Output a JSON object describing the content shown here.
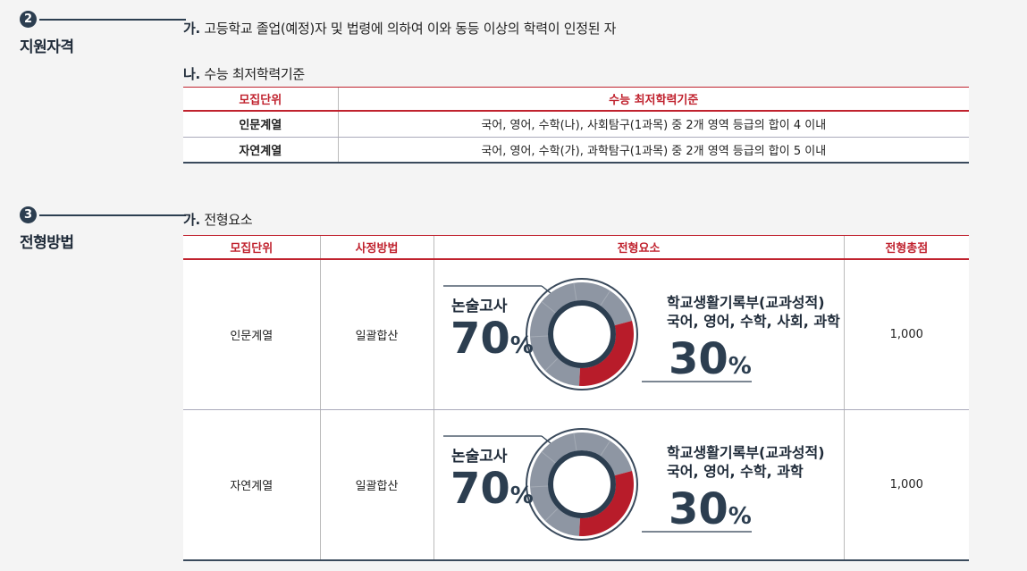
{
  "section2": {
    "number": "2",
    "title": "지원자격",
    "item_a_label": "가.",
    "item_a_text": "고등학교 졸업(예정)자 및 법령에 의하여 이와 동등 이상의 학력이 인정된 자",
    "item_b_label": "나.",
    "item_b_text": "수능 최저학력기준",
    "table": {
      "headers": [
        "모집단위",
        "수능 최저학력기준"
      ],
      "rows": [
        [
          "인문계열",
          "국어, 영어, 수학(나), 사회탐구(1과목) 중 2개 영역 등급의 합이 4 이내"
        ],
        [
          "자연계열",
          "국어, 영어, 수학(가), 과학탐구(1과목) 중 2개 영역 등급의 합이 5 이내"
        ]
      ]
    }
  },
  "section3": {
    "number": "3",
    "title": "전형방법",
    "item_a_label": "가.",
    "item_a_text": "전형요소",
    "table": {
      "headers": [
        "모집단위",
        "사정방법",
        "전형요소",
        "전형총점"
      ],
      "rows": [
        {
          "unit": "인문계열",
          "method": "일괄합산",
          "total": "1,000",
          "left_label": "논술고사",
          "left_value": "70",
          "percent": "%",
          "right_line1": "학교생활기록부(교과성적)",
          "right_line2": "국어, 영어, 수학, 사회, 과학",
          "right_value": "30"
        },
        {
          "unit": "자연계열",
          "method": "일괄합산",
          "total": "1,000",
          "left_label": "논술고사",
          "left_value": "70",
          "percent": "%",
          "right_line1": "학교생활기록부(교과성적)",
          "right_line2": "국어, 영어, 수학, 과학",
          "right_value": "30"
        }
      ]
    }
  },
  "chart_data": [
    {
      "type": "pie",
      "categories": [
        "논술고사",
        "학교생활기록부(교과성적)"
      ],
      "values": [
        70,
        30
      ],
      "title": "",
      "colors": [
        "#8e96a3",
        "#b81c2a"
      ]
    },
    {
      "type": "pie",
      "categories": [
        "논술고사",
        "학교생활기록부(교과성적)"
      ],
      "values": [
        70,
        30
      ],
      "title": "",
      "colors": [
        "#8e96a3",
        "#b81c2a"
      ]
    }
  ],
  "colors": {
    "accent": "#c0222e",
    "navy": "#2c3e50",
    "gray_segment": "#8e96a3"
  }
}
